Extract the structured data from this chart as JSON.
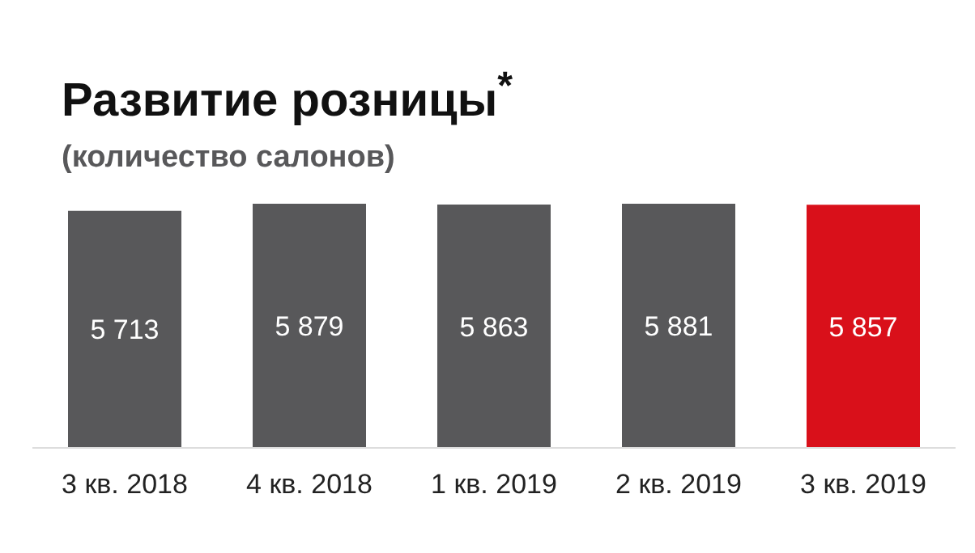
{
  "chart_data": {
    "type": "bar",
    "title": "Развитие розницы$^{*}$",
    "subtitle": "(количество салонов)",
    "categories": [
      "3 кв. 2018",
      "4 кв. 2018",
      "1 кв. 2019",
      "2 кв. 2019",
      "3 кв. 2019"
    ],
    "values": [
      5713,
      5879,
      5863,
      5881,
      5857
    ],
    "value_labels": [
      "5 713",
      "5 879",
      "5 863",
      "5 881",
      "5 857"
    ],
    "colors": [
      "#58585a",
      "#58585a",
      "#58585a",
      "#58585a",
      "#d9101a"
    ]
  }
}
